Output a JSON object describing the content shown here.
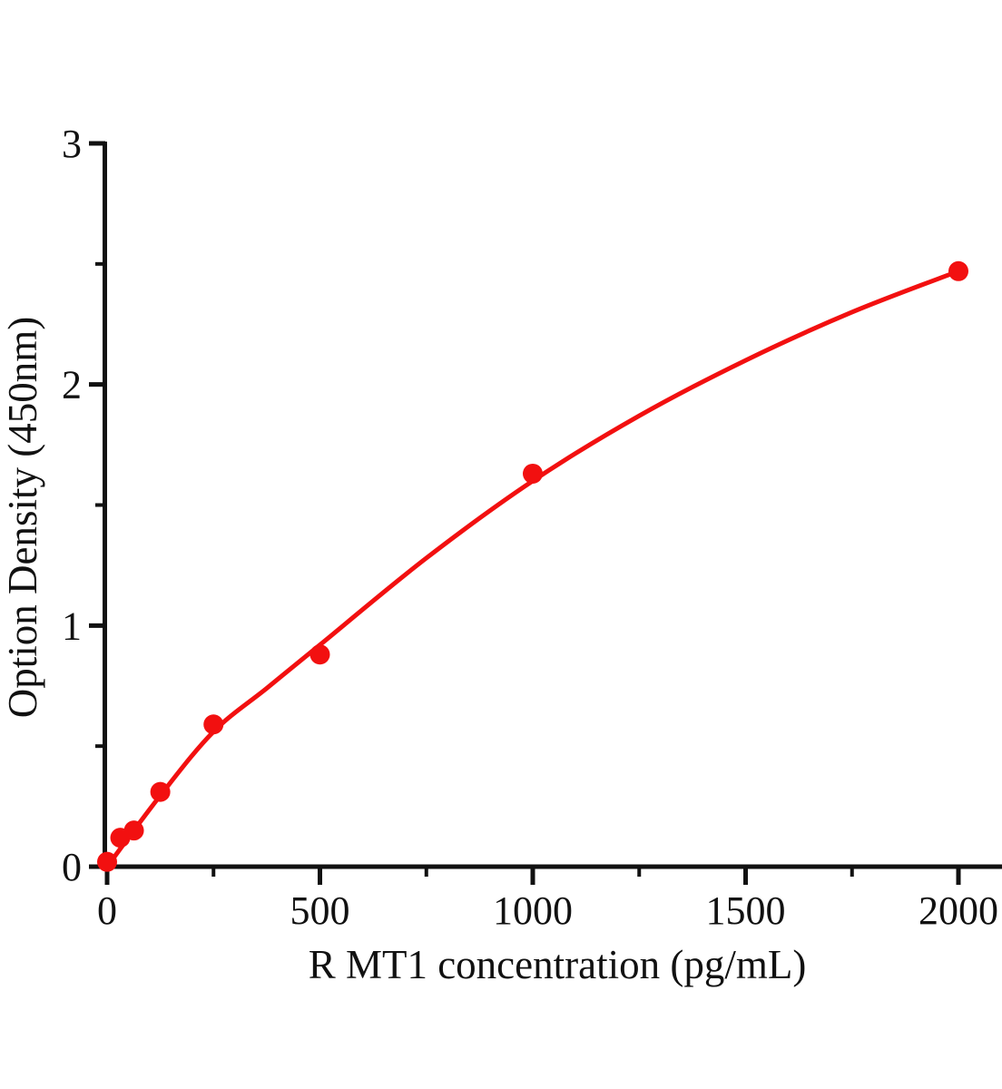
{
  "figure": {
    "background": "#ffffff"
  },
  "chart_data": {
    "type": "scatter",
    "title": "",
    "xlabel": "R MT1  concentration (pg/mL)",
    "ylabel": "Option Density (450nm)",
    "xlim": [
      0,
      2100
    ],
    "ylim": [
      0,
      3
    ],
    "grid": false,
    "legend": "none",
    "x_major_ticks": [
      0,
      500,
      1000,
      1500,
      2000
    ],
    "x_minor_ticks": [
      250,
      750,
      1250,
      1750
    ],
    "y_major_ticks": [
      0,
      1,
      2,
      3
    ],
    "y_minor_ticks": [
      0.5,
      1.5,
      2.5
    ],
    "colors": {
      "series": "#f21010",
      "axis": "#111111",
      "background": "#ffffff"
    },
    "series": [
      {
        "name": "standard-points",
        "type": "scatter",
        "color": "#f21010",
        "points": [
          {
            "x": 0,
            "y": 0.02
          },
          {
            "x": 31,
            "y": 0.12
          },
          {
            "x": 63,
            "y": 0.15
          },
          {
            "x": 125,
            "y": 0.31
          },
          {
            "x": 250,
            "y": 0.59
          },
          {
            "x": 500,
            "y": 0.88
          },
          {
            "x": 1000,
            "y": 1.63
          },
          {
            "x": 2000,
            "y": 2.47
          }
        ]
      },
      {
        "name": "fitted-curve",
        "type": "line",
        "color": "#f21010",
        "points": [
          {
            "x": 0,
            "y": 0.0
          },
          {
            "x": 125,
            "y": 0.295
          },
          {
            "x": 250,
            "y": 0.56
          },
          {
            "x": 375,
            "y": 0.74
          },
          {
            "x": 500,
            "y": 0.92
          },
          {
            "x": 750,
            "y": 1.28
          },
          {
            "x": 1000,
            "y": 1.6
          },
          {
            "x": 1250,
            "y": 1.87
          },
          {
            "x": 1500,
            "y": 2.1
          },
          {
            "x": 1750,
            "y": 2.3
          },
          {
            "x": 2000,
            "y": 2.47
          }
        ]
      }
    ]
  }
}
